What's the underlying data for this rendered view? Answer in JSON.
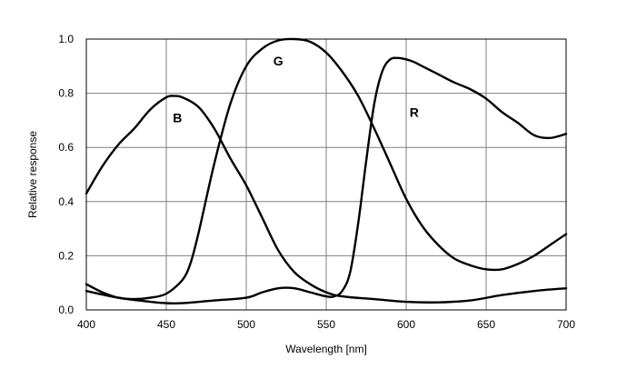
{
  "chart_data": {
    "type": "line",
    "title": "",
    "xlabel": "Wavelength [nm]",
    "ylabel": "Relative response",
    "xlim": [
      400,
      700
    ],
    "ylim": [
      0,
      1.0
    ],
    "xticks": [
      400,
      450,
      500,
      550,
      600,
      650,
      700
    ],
    "yticks": [
      0.0,
      0.2,
      0.4,
      0.6,
      0.8,
      1.0
    ],
    "xtick_labels": [
      "400",
      "450",
      "500",
      "550",
      "600",
      "650",
      "700"
    ],
    "ytick_labels": [
      "0.0",
      "0.2",
      "0.4",
      "0.6",
      "0.8",
      "1.0"
    ],
    "grid": true,
    "legend": "none",
    "series": [
      {
        "name": "B",
        "label_at": [
          457,
          0.71
        ],
        "x": [
          400,
          410,
          420,
          430,
          440,
          450,
          455,
          460,
          470,
          480,
          490,
          500,
          510,
          520,
          530,
          540,
          550,
          560,
          580,
          600,
          620,
          640,
          660,
          680,
          700
        ],
        "y": [
          0.43,
          0.53,
          0.61,
          0.67,
          0.74,
          0.785,
          0.79,
          0.785,
          0.75,
          0.67,
          0.56,
          0.46,
          0.34,
          0.22,
          0.14,
          0.095,
          0.065,
          0.05,
          0.04,
          0.03,
          0.028,
          0.035,
          0.055,
          0.07,
          0.08
        ]
      },
      {
        "name": "G",
        "label_at": [
          520,
          0.92
        ],
        "x": [
          400,
          410,
          420,
          430,
          440,
          450,
          460,
          465,
          470,
          480,
          490,
          500,
          510,
          520,
          530,
          540,
          550,
          560,
          570,
          580,
          590,
          600,
          610,
          620,
          630,
          640,
          650,
          660,
          670,
          680,
          690,
          700
        ],
        "y": [
          0.095,
          0.065,
          0.045,
          0.04,
          0.045,
          0.06,
          0.11,
          0.17,
          0.28,
          0.54,
          0.76,
          0.9,
          0.965,
          0.995,
          1.0,
          0.99,
          0.95,
          0.88,
          0.79,
          0.67,
          0.54,
          0.41,
          0.31,
          0.24,
          0.19,
          0.165,
          0.15,
          0.15,
          0.17,
          0.2,
          0.24,
          0.28
        ]
      },
      {
        "name": "R",
        "label_at": [
          605,
          0.73
        ],
        "x": [
          400,
          420,
          440,
          450,
          460,
          480,
          500,
          510,
          520,
          530,
          540,
          550,
          555,
          560,
          565,
          570,
          575,
          580,
          585,
          590,
          595,
          600,
          605,
          610,
          620,
          630,
          640,
          650,
          660,
          670,
          680,
          690,
          700
        ],
        "y": [
          0.07,
          0.045,
          0.03,
          0.025,
          0.025,
          0.035,
          0.045,
          0.065,
          0.08,
          0.08,
          0.065,
          0.05,
          0.05,
          0.07,
          0.14,
          0.32,
          0.55,
          0.76,
          0.88,
          0.925,
          0.93,
          0.925,
          0.915,
          0.9,
          0.87,
          0.84,
          0.815,
          0.78,
          0.73,
          0.69,
          0.645,
          0.635,
          0.65
        ]
      }
    ]
  }
}
